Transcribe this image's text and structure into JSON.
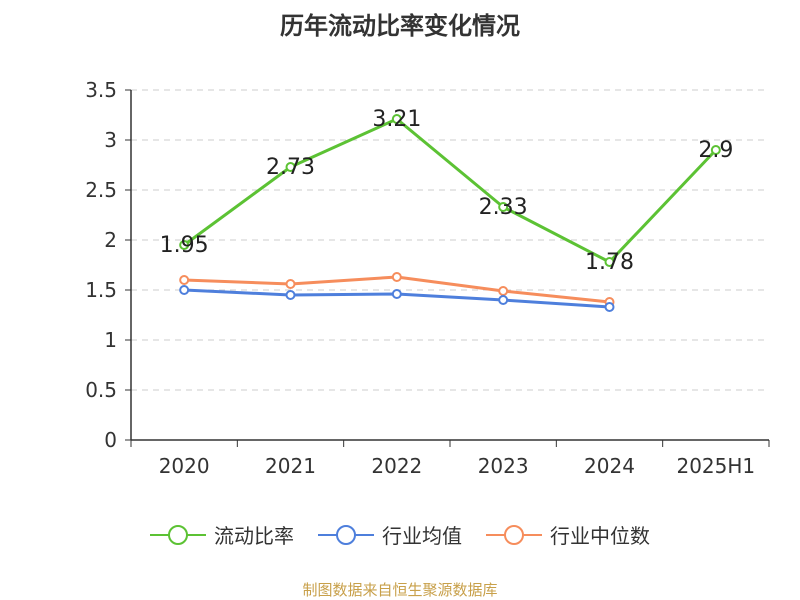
{
  "chart_data": {
    "type": "line",
    "title": "历年流动比率变化情况",
    "categories": [
      "2020",
      "2021",
      "2022",
      "2023",
      "2024",
      "2025H1"
    ],
    "ylim": [
      0,
      3.5
    ],
    "yticks": [
      "0",
      "0.5",
      "1",
      "1.5",
      "2",
      "2.5",
      "3",
      "3.5"
    ],
    "grid": true,
    "legend_position": "bottom",
    "series": [
      {
        "name": "流动比率",
        "color": "#5cc234",
        "values": [
          1.95,
          2.73,
          3.21,
          2.33,
          1.78,
          2.9
        ],
        "labels": [
          "1.95",
          "2.73",
          "3.21",
          "2.33",
          "1.78",
          "2.9"
        ]
      },
      {
        "name": "行业均值",
        "color": "#4e7fdc",
        "values": [
          1.5,
          1.45,
          1.46,
          1.4,
          1.33,
          null
        ]
      },
      {
        "name": "行业中位数",
        "color": "#f68d5c",
        "values": [
          1.6,
          1.56,
          1.63,
          1.49,
          1.38,
          null
        ]
      }
    ]
  },
  "source_note": "制图数据来自恒生聚源数据库"
}
